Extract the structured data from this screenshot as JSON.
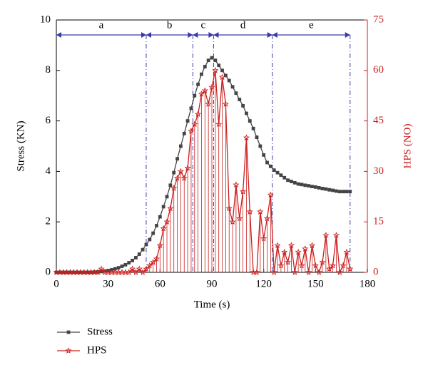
{
  "chart_data": {
    "type": "line",
    "xlabel": "Time (s)",
    "ylabel": "Stress (KN)",
    "y2label": "HPS (NO)",
    "x": [
      0,
      2,
      4,
      6,
      8,
      10,
      12,
      14,
      16,
      18,
      20,
      22,
      24,
      26,
      28,
      30,
      32,
      34,
      36,
      38,
      40,
      42,
      44,
      46,
      48,
      50,
      52,
      54,
      56,
      58,
      60,
      62,
      64,
      66,
      68,
      70,
      72,
      74,
      76,
      78,
      80,
      82,
      84,
      86,
      88,
      90,
      92,
      94,
      96,
      98,
      100,
      102,
      104,
      106,
      108,
      110,
      112,
      114,
      116,
      118,
      120,
      122,
      124,
      126,
      128,
      130,
      132,
      134,
      136,
      138,
      140,
      142,
      144,
      146,
      148,
      150,
      152,
      154,
      156,
      158,
      160,
      162,
      164,
      166,
      168,
      170
    ],
    "series": [
      {
        "name": "Stress",
        "color": "#444444",
        "marker": "square",
        "axis": "y",
        "values": [
          0,
          0,
          0,
          0,
          0,
          0,
          0,
          0,
          0,
          0,
          0,
          0.01,
          0.02,
          0.03,
          0.05,
          0.07,
          0.1,
          0.14,
          0.18,
          0.24,
          0.3,
          0.38,
          0.47,
          0.58,
          0.72,
          0.9,
          1.1,
          1.3,
          1.55,
          1.85,
          2.2,
          2.6,
          3.0,
          3.45,
          3.95,
          4.5,
          5.0,
          5.5,
          6.0,
          6.5,
          7.0,
          7.45,
          7.85,
          8.15,
          8.4,
          8.5,
          8.4,
          8.2,
          8.0,
          7.8,
          7.6,
          7.35,
          7.1,
          6.85,
          6.6,
          6.3,
          6.0,
          5.7,
          5.35,
          5.0,
          4.65,
          4.35,
          4.2,
          4.05,
          3.95,
          3.85,
          3.75,
          3.65,
          3.6,
          3.55,
          3.5,
          3.48,
          3.45,
          3.43,
          3.4,
          3.38,
          3.35,
          3.32,
          3.3,
          3.27,
          3.25,
          3.22,
          3.2,
          3.2,
          3.2,
          3.2
        ]
      },
      {
        "name": "HPS",
        "color": "#cc1f1f",
        "marker": "star",
        "axis": "y2",
        "stems": true,
        "values": [
          0,
          0,
          0,
          0,
          0,
          0,
          0,
          0,
          0,
          0,
          0,
          0,
          0,
          1,
          0,
          0,
          0,
          0,
          0,
          0,
          0,
          0,
          1,
          0,
          1,
          0,
          1,
          2,
          3,
          4,
          8,
          13,
          15,
          19,
          25,
          28,
          30,
          28,
          31,
          42,
          44,
          47,
          53,
          54,
          50,
          55,
          60,
          44,
          58,
          50,
          19,
          15,
          26,
          16,
          24,
          40,
          18,
          0,
          0,
          18,
          10,
          16,
          23,
          0,
          8,
          2,
          6,
          3,
          8,
          0,
          6,
          2,
          7,
          0,
          8,
          2,
          0,
          3,
          11,
          1,
          2,
          11,
          0,
          2,
          6,
          1
        ]
      }
    ],
    "regions": [
      {
        "label": "a",
        "start": 0,
        "end": 52
      },
      {
        "label": "b",
        "start": 52,
        "end": 79
      },
      {
        "label": "c",
        "start": 79,
        "end": 91
      },
      {
        "label": "d",
        "start": 91,
        "end": 125
      },
      {
        "label": "e",
        "start": 125,
        "end": 170
      }
    ],
    "region_color": "#3a3aa8",
    "xlim": [
      0,
      180
    ],
    "xticks": [
      0,
      30,
      60,
      90,
      120,
      150,
      180
    ],
    "ylim": [
      0,
      10
    ],
    "yticks": [
      0,
      2,
      4,
      6,
      8,
      10
    ],
    "y2lim": [
      0,
      75
    ],
    "y2ticks": [
      0,
      15,
      30,
      45,
      60,
      75
    ],
    "y2color": "#cc1f1f"
  }
}
